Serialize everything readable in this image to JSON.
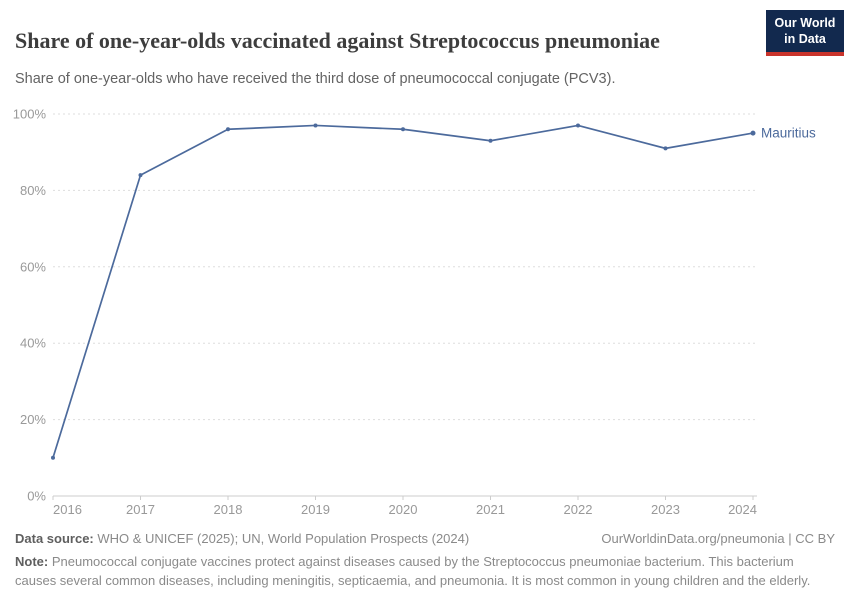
{
  "header": {
    "title": "Share of one-year-olds vaccinated against Streptococcus pneumoniae",
    "subtitle": "Share of one-year-olds who have received the third dose of pneumococcal conjugate (PCV3)."
  },
  "logo": {
    "line1": "Our World",
    "line2": "in Data",
    "bg_color": "#12294E",
    "accent_color": "#C9332B"
  },
  "chart_data": {
    "type": "line",
    "title": "Share of one-year-olds vaccinated against Streptococcus pneumoniae",
    "subtitle": "Share of one-year-olds who have received the third dose of pneumococcal conjugate (PCV3).",
    "x": [
      2016,
      2017,
      2018,
      2019,
      2020,
      2021,
      2022,
      2023,
      2024
    ],
    "series": [
      {
        "name": "Mauritius",
        "color": "#4C6A9C",
        "values": [
          10,
          84,
          96,
          97,
          96,
          93,
          97,
          91,
          95
        ]
      }
    ],
    "xlabel": "",
    "ylabel": "",
    "ylim": [
      0,
      100
    ],
    "yticks": [
      0,
      20,
      40,
      60,
      80,
      100
    ],
    "ytick_suffix": "%",
    "xticks": [
      2016,
      2017,
      2018,
      2019,
      2020,
      2021,
      2022,
      2023,
      2024
    ],
    "grid": "horizontal-dashed",
    "gridline_color": "#dddddd",
    "axis_color": "#cccccc",
    "tick_label_color": "#999999",
    "legend_position": "line-end-label"
  },
  "footer": {
    "datasource_label": "Data source:",
    "datasource_text": " WHO & UNICEF (2025); UN, World Population Prospects (2024)",
    "attribution": "OurWorldinData.org/pneumonia | CC BY",
    "note_label": "Note:",
    "note_text": " Pneumococcal conjugate vaccines protect against diseases caused by the Streptococcus pneumoniae bacterium. This bacterium causes several common diseases, including meningitis, septicaemia, and pneumonia. It is most common in young children and the elderly."
  }
}
